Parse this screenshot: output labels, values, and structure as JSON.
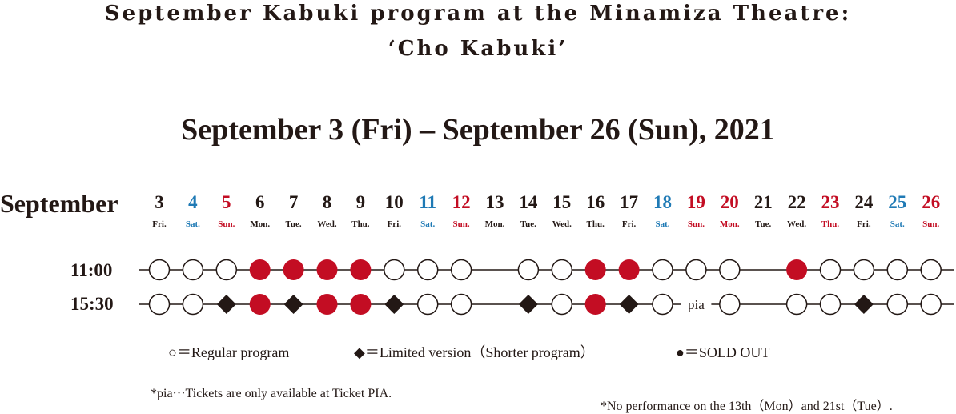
{
  "title": {
    "line1": "September Kabuki program at the Minamiza Theatre:",
    "line2": "‘Cho Kabuki’"
  },
  "dates": "September 3 (Fri) – September 26 (Sun), 2021",
  "month": "September",
  "times": [
    "11:00",
    "15:30"
  ],
  "colors": {
    "text": "#231815",
    "saturday": "#1f7ab5",
    "sunday_holiday": "#c30d23",
    "sold_out": "#c30d23"
  },
  "days": [
    {
      "num": "3",
      "wday": "Fri.",
      "color": "#231815"
    },
    {
      "num": "4",
      "wday": "Sat.",
      "color": "#1f7ab5"
    },
    {
      "num": "5",
      "wday": "Sun.",
      "color": "#c30d23"
    },
    {
      "num": "6",
      "wday": "Mon.",
      "color": "#231815"
    },
    {
      "num": "7",
      "wday": "Tue.",
      "color": "#231815"
    },
    {
      "num": "8",
      "wday": "Wed.",
      "color": "#231815"
    },
    {
      "num": "9",
      "wday": "Thu.",
      "color": "#231815"
    },
    {
      "num": "10",
      "wday": "Fri.",
      "color": "#231815"
    },
    {
      "num": "11",
      "wday": "Sat.",
      "color": "#1f7ab5"
    },
    {
      "num": "12",
      "wday": "Sun.",
      "color": "#c30d23"
    },
    {
      "num": "13",
      "wday": "Mon.",
      "color": "#231815"
    },
    {
      "num": "14",
      "wday": "Tue.",
      "color": "#231815"
    },
    {
      "num": "15",
      "wday": "Wed.",
      "color": "#231815"
    },
    {
      "num": "16",
      "wday": "Thu.",
      "color": "#231815"
    },
    {
      "num": "17",
      "wday": "Fri.",
      "color": "#231815"
    },
    {
      "num": "18",
      "wday": "Sat.",
      "color": "#1f7ab5"
    },
    {
      "num": "19",
      "wday": "Sun.",
      "color": "#c30d23"
    },
    {
      "num": "20",
      "wday": "Mon.",
      "color": "#c30d23"
    },
    {
      "num": "21",
      "wday": "Tue.",
      "color": "#231815"
    },
    {
      "num": "22",
      "wday": "Wed.",
      "color": "#231815"
    },
    {
      "num": "23",
      "wday": "Thu.",
      "color": "#c30d23"
    },
    {
      "num": "24",
      "wday": "Fri.",
      "color": "#231815"
    },
    {
      "num": "25",
      "wday": "Sat.",
      "color": "#1f7ab5"
    },
    {
      "num": "26",
      "wday": "Sun.",
      "color": "#c30d23"
    }
  ],
  "schedule": {
    "row_1100": [
      "regular",
      "regular",
      "regular",
      "sold",
      "sold",
      "sold",
      "sold",
      "regular",
      "regular",
      "regular",
      "none",
      "regular",
      "regular",
      "sold",
      "sold",
      "regular",
      "regular",
      "regular",
      "none",
      "sold",
      "regular",
      "regular",
      "regular",
      "regular"
    ],
    "row_1530": [
      "regular",
      "regular",
      "limited",
      "sold",
      "limited",
      "sold",
      "sold",
      "limited",
      "regular",
      "regular",
      "none",
      "limited",
      "regular",
      "sold",
      "limited",
      "regular",
      "pia",
      "regular",
      "none",
      "regular",
      "regular",
      "limited",
      "regular",
      "regular"
    ]
  },
  "pia_label": "pia",
  "legend": {
    "regular": "○＝Regular program",
    "limited": "◆＝Limited version（Shorter program）",
    "sold": "●＝SOLD OUT"
  },
  "notes": {
    "pia": "*pia···Tickets are only available at Ticket PIA.",
    "no_perf": "*No performance on the 13th（Mon）and 21st（Tue）."
  }
}
